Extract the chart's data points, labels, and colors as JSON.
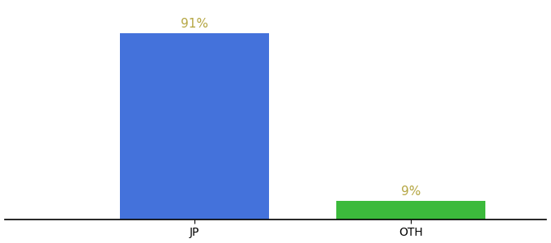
{
  "categories": [
    "JP",
    "OTH"
  ],
  "values": [
    91,
    9
  ],
  "bar_colors": [
    "#4472db",
    "#3cba3c"
  ],
  "label_texts": [
    "91%",
    "9%"
  ],
  "label_color": "#b5a642",
  "ylim": [
    0,
    105
  ],
  "background_color": "#ffffff",
  "label_fontsize": 11,
  "tick_fontsize": 10,
  "bar_width": 0.55,
  "xlim": [
    -0.2,
    1.8
  ]
}
